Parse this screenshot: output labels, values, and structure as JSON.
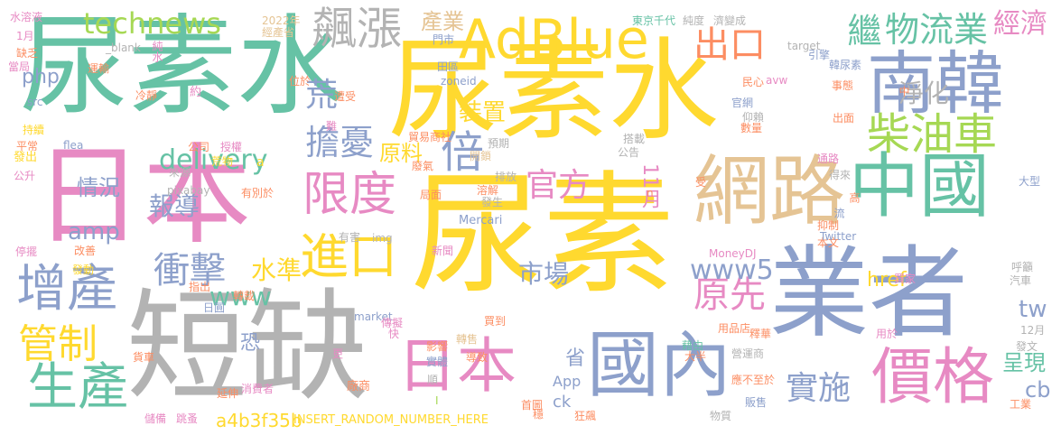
{
  "colors": {
    "green": "#66c2a5",
    "orange": "#fc8d62",
    "blue": "#8da0cb",
    "pink": "#e78ac3",
    "lime": "#a6d854",
    "yellow": "#ffd92f",
    "tan": "#e5c494",
    "gray": "#b3b3b3"
  },
  "words": [
    {
      "text": "尿素水",
      "color": "green"
    },
    {
      "text": "尿素水",
      "color": "yellow"
    },
    {
      "text": "尿素",
      "color": "yellow"
    },
    {
      "text": "日本",
      "color": "pink"
    },
    {
      "text": "短缺",
      "color": "gray"
    },
    {
      "text": "業者",
      "color": "blue"
    },
    {
      "text": "AdBlue",
      "color": "yellow"
    },
    {
      "text": "南韓",
      "color": "blue"
    },
    {
      "text": "網路",
      "color": "tan"
    },
    {
      "text": "中國",
      "color": "green"
    },
    {
      "text": "國內",
      "color": "blue"
    },
    {
      "text": "日本",
      "color": "pink"
    },
    {
      "text": "價格",
      "color": "pink"
    },
    {
      "text": "增產",
      "color": "blue"
    },
    {
      "text": "生產",
      "color": "green"
    },
    {
      "text": "進口",
      "color": "yellow"
    },
    {
      "text": "柴油車",
      "color": "lime"
    },
    {
      "text": "飆漲",
      "color": "gray"
    },
    {
      "text": "限度",
      "color": "pink"
    },
    {
      "text": "出口",
      "color": "orange"
    },
    {
      "text": "物流業",
      "color": "green"
    },
    {
      "text": "繼",
      "color": "green"
    },
    {
      "text": "經濟",
      "color": "pink"
    },
    {
      "text": "淨化",
      "color": "gray"
    },
    {
      "text": "倍",
      "color": "blue"
    },
    {
      "text": "擔憂",
      "color": "blue"
    },
    {
      "text": "原先",
      "color": "pink"
    },
    {
      "text": "實施",
      "color": "blue"
    },
    {
      "text": "管制",
      "color": "yellow"
    },
    {
      "text": "衝擊",
      "color": "blue"
    },
    {
      "text": "官方",
      "color": "pink"
    },
    {
      "text": "technews",
      "color": "lime"
    },
    {
      "text": "www5",
      "color": "blue"
    },
    {
      "text": "delivery",
      "color": "green"
    },
    {
      "text": "www",
      "color": "green"
    },
    {
      "text": "荒",
      "color": "blue"
    },
    {
      "text": "產業",
      "color": "tan"
    },
    {
      "text": "裝置",
      "color": "yellow"
    },
    {
      "text": "報導",
      "color": "blue"
    },
    {
      "text": "情況",
      "color": "blue"
    },
    {
      "text": "原料",
      "color": "yellow"
    },
    {
      "text": "市場",
      "color": "blue"
    },
    {
      "text": "11月",
      "color": "pink"
    },
    {
      "text": "水準",
      "color": "yellow"
    },
    {
      "text": "amp",
      "color": "blue"
    },
    {
      "text": "php",
      "color": "blue"
    },
    {
      "text": "tw",
      "color": "blue"
    },
    {
      "text": "cb",
      "color": "blue"
    },
    {
      "text": "href",
      "color": "yellow"
    },
    {
      "text": "呈現",
      "color": "green"
    },
    {
      "text": "恐",
      "color": "blue"
    },
    {
      "text": "省",
      "color": "blue"
    },
    {
      "text": "a4b3f35b",
      "color": "yellow"
    },
    {
      "text": "ck",
      "color": "blue"
    },
    {
      "text": "INSERT_RANDOM_NUMBER_HERE",
      "color": "yellow"
    },
    {
      "text": "App",
      "color": "blue"
    },
    {
      "text": "水溶液",
      "color": "pink"
    },
    {
      "text": "1月",
      "color": "pink"
    },
    {
      "text": "缺乏",
      "color": "orange"
    },
    {
      "text": "當局",
      "color": "pink"
    },
    {
      "text": "_blank",
      "color": "gray"
    },
    {
      "text": "純水",
      "color": "pink"
    },
    {
      "text": "運輸",
      "color": "orange"
    },
    {
      "text": "冷靜",
      "color": "orange"
    },
    {
      "text": "約",
      "color": "pink"
    },
    {
      "text": "src",
      "color": "blue"
    },
    {
      "text": "持續",
      "color": "yellow"
    },
    {
      "text": "平常",
      "color": "orange"
    },
    {
      "text": "發出",
      "color": "yellow"
    },
    {
      "text": "flea",
      "color": "blue"
    },
    {
      "text": "公升",
      "color": "pink"
    },
    {
      "text": "停擺",
      "color": "pink"
    },
    {
      "text": "改善",
      "color": "orange"
    },
    {
      "text": "發動",
      "color": "yellow"
    },
    {
      "text": "貨車",
      "color": "orange"
    },
    {
      "text": "儲備",
      "color": "pink"
    },
    {
      "text": "跳蚤",
      "color": "pink"
    },
    {
      "text": "延伸",
      "color": "orange"
    },
    {
      "text": "首圖",
      "color": "orange"
    },
    {
      "text": "穩",
      "color": "orange"
    },
    {
      "text": "狂飆",
      "color": "orange"
    },
    {
      "text": "2022年",
      "color": "tan"
    },
    {
      "text": "經產省",
      "color": "tan"
    },
    {
      "text": "門市",
      "color": "blue"
    },
    {
      "text": "田區",
      "color": "blue"
    },
    {
      "text": "zoneid",
      "color": "blue"
    },
    {
      "text": "位於",
      "color": "orange"
    },
    {
      "text": "遭受",
      "color": "orange"
    },
    {
      "text": "預期",
      "color": "gray"
    },
    {
      "text": "開鎖",
      "color": "tan"
    },
    {
      "text": "貿易商社",
      "color": "orange"
    },
    {
      "text": "排放",
      "color": "gray"
    },
    {
      "text": "溶解",
      "color": "orange"
    },
    {
      "text": "發生",
      "color": "gray"
    },
    {
      "text": "局面",
      "color": "orange"
    },
    {
      "text": "n",
      "color": "orange"
    },
    {
      "text": "Mercari",
      "color": "blue"
    },
    {
      "text": "東京千代",
      "color": "green"
    },
    {
      "text": "純度",
      "color": "gray"
    },
    {
      "text": "濟變成",
      "color": "gray"
    },
    {
      "text": "avw",
      "color": "pink"
    },
    {
      "text": "韓尿素",
      "color": "blue"
    },
    {
      "text": "事態",
      "color": "orange"
    },
    {
      "text": "引擎",
      "color": "blue"
    },
    {
      "text": "target",
      "color": "gray"
    },
    {
      "text": "民心",
      "color": "orange"
    },
    {
      "text": "官網",
      "color": "blue"
    },
    {
      "text": "搭載",
      "color": "gray"
    },
    {
      "text": "仰賴",
      "color": "gray"
    },
    {
      "text": "公告",
      "color": "gray"
    },
    {
      "text": "數量",
      "color": "orange"
    },
    {
      "text": "中",
      "color": "orange"
    },
    {
      "text": "出面",
      "color": "orange"
    },
    {
      "text": "通路",
      "color": "pink"
    },
    {
      "text": "得來",
      "color": "gray"
    },
    {
      "text": "受",
      "color": "orange"
    },
    {
      "text": "大型",
      "color": "blue"
    },
    {
      "text": "高",
      "color": "orange"
    },
    {
      "text": "流",
      "color": "blue"
    },
    {
      "text": "抑制",
      "color": "orange"
    },
    {
      "text": "本文",
      "color": "orange"
    },
    {
      "text": "呼籲",
      "color": "gray"
    },
    {
      "text": "汽車",
      "color": "gray"
    },
    {
      "text": "Twitter",
      "color": "blue"
    },
    {
      "text": "MoneyDJ",
      "color": "pink"
    },
    {
      "text": "買家",
      "color": "pink"
    },
    {
      "text": "用品店",
      "color": "orange"
    },
    {
      "text": "釋華",
      "color": "orange"
    },
    {
      "text": "用於",
      "color": "pink"
    },
    {
      "text": "12月",
      "color": "gray"
    },
    {
      "text": "發文",
      "color": "gray"
    },
    {
      "text": "工業",
      "color": "orange"
    },
    {
      "text": "藉由",
      "color": "green"
    },
    {
      "text": "大半",
      "color": "orange"
    },
    {
      "text": "營運商",
      "color": "gray"
    },
    {
      "text": "應不至於",
      "color": "orange"
    },
    {
      "text": "販售",
      "color": "blue"
    },
    {
      "text": "物質",
      "color": "gray"
    },
    {
      "text": "公司",
      "color": "orange"
    },
    {
      "text": "授權",
      "color": "pink"
    },
    {
      "text": "荒物",
      "color": "yellow"
    },
    {
      "text": "a",
      "color": "yellow"
    },
    {
      "text": "來源",
      "color": "gray"
    },
    {
      "text": "pixabay",
      "color": "gray"
    },
    {
      "text": "有別於",
      "color": "orange"
    },
    {
      "text": "廢氣",
      "color": "orange"
    },
    {
      "text": "難",
      "color": "pink"
    },
    {
      "text": "有害",
      "color": "gray"
    },
    {
      "text": "img",
      "color": "gray"
    },
    {
      "text": "新聞",
      "color": "pink"
    },
    {
      "text": "指出",
      "color": "orange"
    },
    {
      "text": "日圓",
      "color": "blue"
    },
    {
      "text": "轉載",
      "color": "orange"
    },
    {
      "text": "market",
      "color": "blue"
    },
    {
      "text": "傳擬",
      "color": "pink"
    },
    {
      "text": "更",
      "color": "pink"
    },
    {
      "text": "消費者",
      "color": "pink"
    },
    {
      "text": "快",
      "color": "pink"
    },
    {
      "text": "廠商",
      "color": "orange"
    },
    {
      "text": "轉售",
      "color": "tan"
    },
    {
      "text": "影響",
      "color": "orange"
    },
    {
      "text": "實體",
      "color": "blue"
    },
    {
      "text": "導致",
      "color": "orange"
    },
    {
      "text": "順",
      "color": "gray"
    },
    {
      "text": "買到",
      "color": "orange"
    },
    {
      "text": "I",
      "color": "lime"
    }
  ]
}
